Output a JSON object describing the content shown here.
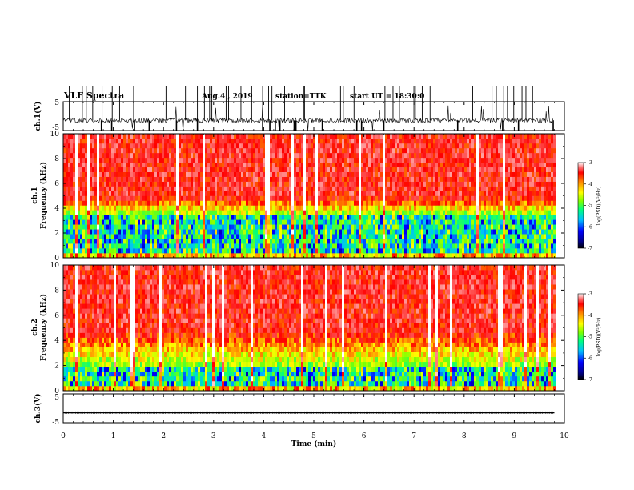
{
  "header": {
    "title": "VLF Spectra",
    "date": "Aug.4 , 2019",
    "station": "station=TTK",
    "start": "start UT = 18:30:0"
  },
  "chart_data": [
    {
      "type": "line",
      "name": "ch1-waveform",
      "ylabel": "ch.1(V)",
      "ylim": [
        -5,
        5
      ],
      "yticks": [
        "5",
        "-5"
      ],
      "xlim": [
        0,
        10
      ],
      "baseline": -1.5,
      "color": "#000000"
    },
    {
      "type": "heatmap",
      "name": "ch1-spectrogram",
      "ylabel_lines": [
        "ch.1",
        "Frequency (kHz)"
      ],
      "ylim": [
        0,
        10
      ],
      "yticks": [
        "0",
        "2",
        "4",
        "6",
        "8",
        "10"
      ],
      "xlim": [
        0,
        9.8
      ],
      "colorbar": {
        "label": "log(PSD)(V²/Hz)",
        "range": [
          -7,
          -3
        ],
        "ticks": [
          "-3",
          "-4",
          "-5",
          "-6",
          "-7"
        ]
      },
      "band_profile": {
        "low_freq_noise_khz": [
          0,
          3.5
        ],
        "mid_transition_khz": [
          3.5,
          5
        ],
        "high_freq_khz": [
          5,
          10
        ]
      }
    },
    {
      "type": "heatmap",
      "name": "ch2-spectrogram",
      "ylabel_lines": [
        "ch.2",
        "Frequency (kHz)"
      ],
      "ylim": [
        0,
        10
      ],
      "yticks": [
        "0",
        "2",
        "4",
        "6",
        "8",
        "10"
      ],
      "xlim": [
        0,
        9.8
      ],
      "colorbar": {
        "label": "log(PSD)(V²/Hz)",
        "range": [
          -7,
          -3
        ],
        "ticks": [
          "-3",
          "-4",
          "-5",
          "-6",
          "-7"
        ]
      },
      "band_profile": {
        "low_freq_noise_khz": [
          0,
          2
        ],
        "mid_transition_khz": [
          2,
          5
        ],
        "high_freq_khz": [
          5,
          10
        ]
      }
    },
    {
      "type": "line",
      "name": "ch3-waveform",
      "ylabel": "ch.3(V)",
      "ylim": [
        -5,
        5
      ],
      "yticks": [
        "5",
        "-5"
      ],
      "xlim": [
        0,
        9.8
      ],
      "constant_value": -1.5,
      "color": "#000000"
    }
  ],
  "xaxis": {
    "label": "Time (min)",
    "ticks": [
      "0",
      "1",
      "2",
      "3",
      "4",
      "5",
      "6",
      "7",
      "8",
      "9",
      "10"
    ],
    "range": [
      0,
      10
    ]
  },
  "colors": {
    "colormap": [
      "#000000",
      "#00008b",
      "#0000ff",
      "#00bfff",
      "#00ff80",
      "#80ff00",
      "#ffff00",
      "#ff8000",
      "#ff0000",
      "#ff6060",
      "#ffffff"
    ]
  }
}
